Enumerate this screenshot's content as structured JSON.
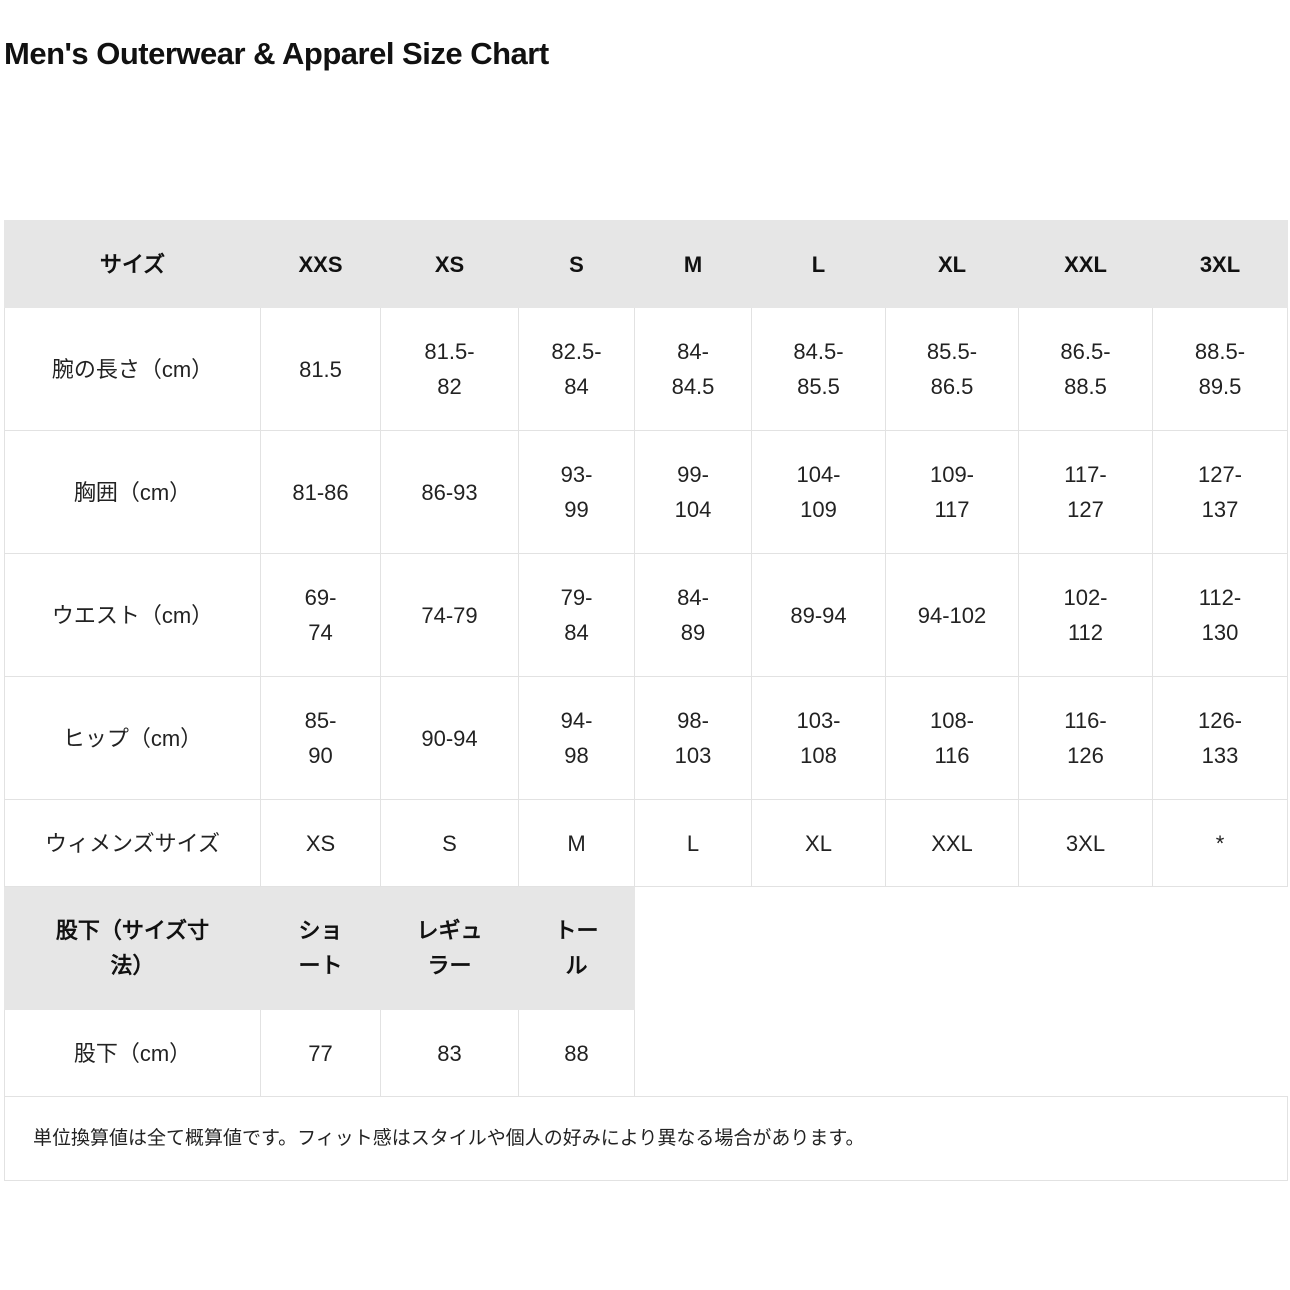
{
  "title": "Men's Outerwear & Apparel Size Chart",
  "size_table": {
    "headers": [
      "サイズ",
      "XXS",
      "XS",
      "S",
      "M",
      "L",
      "XL",
      "XXL",
      "3XL"
    ],
    "rows": [
      {
        "label": "腕の長さ（cm）",
        "values": [
          "81.5",
          "81.5-\n82",
          "82.5-\n84",
          "84-\n84.5",
          "84.5-\n85.5",
          "85.5-\n86.5",
          "86.5-\n88.5",
          "88.5-\n89.5"
        ]
      },
      {
        "label": "胸囲（cm）",
        "values": [
          "81-86",
          "86-93",
          "93-\n99",
          "99-\n104",
          "104-\n109",
          "109-\n117",
          "117-\n127",
          "127-\n137"
        ]
      },
      {
        "label": "ウエスト（cm）",
        "values": [
          "69-\n74",
          "74-79",
          "79-\n84",
          "84-\n89",
          "89-94",
          "94-102",
          "102-\n112",
          "112-\n130"
        ]
      },
      {
        "label": "ヒップ（cm）",
        "values": [
          "85-\n90",
          "90-94",
          "94-\n98",
          "98-\n103",
          "103-\n108",
          "108-\n116",
          "116-\n126",
          "126-\n133"
        ]
      },
      {
        "label": "ウィメンズサイズ",
        "values": [
          "XS",
          "S",
          "M",
          "L",
          "XL",
          "XXL",
          "3XL",
          "*"
        ]
      }
    ]
  },
  "inseam_table": {
    "headers": [
      "股下（サイズ寸\n法）",
      "ショ\nート",
      "レギュ\nラー",
      "トー\nル"
    ],
    "row": {
      "label": "股下（cm）",
      "values": [
        "77",
        "83",
        "88"
      ]
    }
  },
  "note": "単位換算値は全て概算値です。フィット感はスタイルや個人の好みにより異なる場合があります。"
}
